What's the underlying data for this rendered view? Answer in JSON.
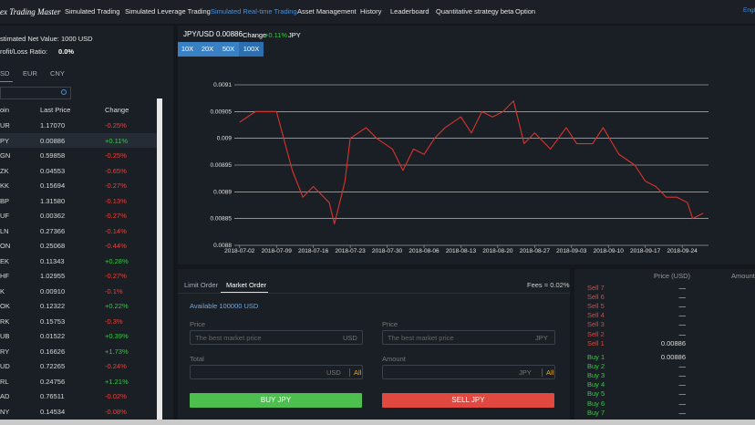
{
  "nav": {
    "logo": "ex Trading Master",
    "items": [
      "Simulated Trading",
      "Simulated Leverage Trading",
      "Simulated Real-time Trading",
      "Asset Management",
      "History",
      "Leaderboard",
      "Quantitative strategy beta",
      "Option"
    ],
    "language": "Engli"
  },
  "account": {
    "net_value": "stimated Net Value: 1000 USD",
    "ratio_label": "rofit/Loss Ratio:",
    "ratio_value": "0.0%"
  },
  "currency_tabs": [
    "SD",
    "EUR",
    "CNY"
  ],
  "table": {
    "columns": [
      "oin",
      "Last Price",
      "Change"
    ],
    "rows": [
      [
        "UR",
        "1.17070",
        "-0.25%"
      ],
      [
        "PY",
        "0.00886",
        "+0.11%"
      ],
      [
        "GN",
        "0.59858",
        "-0.25%"
      ],
      [
        "ZK",
        "0.04553",
        "-0.65%"
      ],
      [
        "KK",
        "0.15694",
        "-0.27%"
      ],
      [
        "BP",
        "1.31580",
        "-0.13%"
      ],
      [
        "UF",
        "0.00362",
        "-0.27%"
      ],
      [
        "LN",
        "0.27366",
        "-0.14%"
      ],
      [
        "ON",
        "0.25068",
        "-0.44%"
      ],
      [
        "EK",
        "0.11343",
        "+0.28%"
      ],
      [
        "HF",
        "1.02955",
        "-0.27%"
      ],
      [
        "K",
        "0.00910",
        "-0.1%"
      ],
      [
        "OK",
        "0.12322",
        "+0.22%"
      ],
      [
        "RK",
        "0.15753",
        "-0.3%"
      ],
      [
        "UB",
        "0.01522",
        "+0.39%"
      ],
      [
        "RY",
        "0.16626",
        "+1.73%"
      ],
      [
        "UD",
        "0.72265",
        "-0.24%"
      ],
      [
        "RL",
        "0.24756",
        "+1.21%"
      ],
      [
        "AD",
        "0.76511",
        "-0.02%"
      ],
      [
        "NY",
        "0.14534",
        "-0.08%"
      ]
    ]
  },
  "pair": {
    "symbol": "JPY/USD 0.00886",
    "change_label": "Change",
    "change": "+0.11%",
    "quote": "JPY"
  },
  "leverage": [
    "10X",
    "20X",
    "50X",
    "100X"
  ],
  "chart_data": {
    "type": "line",
    "color": "#d9342b",
    "grid": true,
    "x": [
      "2018-07-02",
      "2018-07-05",
      "2018-07-09",
      "2018-07-12",
      "2018-07-14",
      "2018-07-16",
      "2018-07-19",
      "2018-07-20",
      "2018-07-22",
      "2018-07-23",
      "2018-07-26",
      "2018-07-28",
      "2018-07-31",
      "2018-08-02",
      "2018-08-04",
      "2018-08-06",
      "2018-08-08",
      "2018-08-10",
      "2018-08-13",
      "2018-08-15",
      "2018-08-17",
      "2018-08-19",
      "2018-08-21",
      "2018-08-23",
      "2018-08-25",
      "2018-08-27",
      "2018-08-30",
      "2018-09-02",
      "2018-09-04",
      "2018-09-07",
      "2018-09-09",
      "2018-09-12",
      "2018-09-15",
      "2018-09-17",
      "2018-09-19",
      "2018-09-21",
      "2018-09-23",
      "2018-09-25",
      "2018-09-26",
      "2018-09-28"
    ],
    "values": [
      0.00903,
      0.00905,
      0.00905,
      0.00894,
      0.00889,
      0.00891,
      0.00888,
      0.00884,
      0.00892,
      0.009,
      0.00902,
      0.009,
      0.00898,
      0.00894,
      0.00898,
      0.00897,
      0.009,
      0.00902,
      0.00904,
      0.00901,
      0.00905,
      0.00904,
      0.00905,
      0.00907,
      0.00899,
      0.00901,
      0.00898,
      0.00902,
      0.00899,
      0.00899,
      0.00902,
      0.00897,
      0.00895,
      0.00892,
      0.00891,
      0.00889,
      0.00889,
      0.00888,
      0.00885,
      0.00886
    ],
    "xlim": [
      "2018-07-01",
      "2018-09-29"
    ],
    "xticks": [
      "2018-07-02",
      "2018-07-09",
      "2018-07-16",
      "2018-07-23",
      "2018-07-30",
      "2018-08-06",
      "2018-08-13",
      "2018-08-20",
      "2018-08-27",
      "2018-09-03",
      "2018-09-10",
      "2018-09-17",
      "2018-09-24"
    ],
    "ylim": [
      0.0088,
      0.0091
    ],
    "yticks": [
      0.0088,
      0.00885,
      0.0089,
      0.00895,
      0.009,
      0.00905,
      0.0091
    ]
  },
  "order": {
    "tabs": [
      "Limit Order",
      "Market Order"
    ],
    "fees": "Fees = 0.02%",
    "available": "Available 100000 USD",
    "buy": {
      "price_label": "Price",
      "placeholder": "The best market price",
      "price_unit": "USD",
      "total_label": "Total",
      "total_unit": "USD",
      "all": "All",
      "button": "BUY JPY"
    },
    "sell": {
      "price_label": "Price",
      "placeholder": "The best market price",
      "price_unit": "JPY",
      "total_label": "Amount",
      "total_unit": "JPY",
      "all": "All",
      "button": "SELL JPY"
    }
  },
  "order_book": {
    "columns": [
      "Price (USD)",
      "Amount(L"
    ],
    "sell": [
      [
        "Sell 7",
        "—"
      ],
      [
        "Sell 6",
        "—"
      ],
      [
        "Sell 5",
        "—"
      ],
      [
        "Sell 4",
        "—"
      ],
      [
        "Sell 3",
        "—"
      ],
      [
        "Sell 2",
        "—"
      ],
      [
        "Sell 1",
        "0.00886"
      ]
    ],
    "buy": [
      [
        "Buy 1",
        "0.00886"
      ],
      [
        "Buy 2",
        "—"
      ],
      [
        "Buy 3",
        "—"
      ],
      [
        "Buy 4",
        "—"
      ],
      [
        "Buy 5",
        "—"
      ],
      [
        "Buy 6",
        "—"
      ],
      [
        "Buy 7",
        "—"
      ]
    ]
  }
}
